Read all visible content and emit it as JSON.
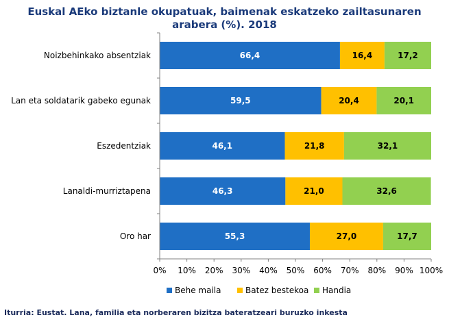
{
  "chart_data": {
    "type": "bar",
    "orientation": "horizontal",
    "stacked": true,
    "title_lines": [
      "Euskal AEko biztanle okupatuak, baimenak eskatzeko zailtasunaren",
      "arabera (%). 2018"
    ],
    "categories": [
      "Noizbehinkako absentziak",
      "Lan eta soldatarik gabeko egunak",
      "Eszedentziak",
      "Lanaldi-murriztapena",
      "Oro har"
    ],
    "series": [
      {
        "name": "Behe maila",
        "color": "#1f6fc5",
        "label_color": "#ffffff",
        "values": [
          66.4,
          59.5,
          46.1,
          46.3,
          55.3
        ]
      },
      {
        "name": "Batez bestekoa",
        "color": "#ffc000",
        "label_color": "#000000",
        "values": [
          16.4,
          20.4,
          21.8,
          21.0,
          27.0
        ]
      },
      {
        "name": "Handia",
        "color": "#92d050",
        "label_color": "#000000",
        "values": [
          17.2,
          20.1,
          32.1,
          32.6,
          17.7
        ]
      }
    ],
    "data_labels": [
      [
        "66,4",
        "59,5",
        "46,1",
        "46,3",
        "55,3"
      ],
      [
        "16,4",
        "20,4",
        "21,8",
        "21,0",
        "27,0"
      ],
      [
        "17,2",
        "20,1",
        "32,1",
        "32,6",
        "17,7"
      ]
    ],
    "x_ticks": [
      "0%",
      "10%",
      "20%",
      "30%",
      "40%",
      "50%",
      "60%",
      "70%",
      "80%",
      "90%",
      "100%"
    ],
    "xlim": [
      0,
      100
    ],
    "grid": false,
    "legend_position": "bottom"
  },
  "source": "Iturria: Eustat. Lana, familia eta norberaren bizitza bateratzeari buruzko inkesta"
}
